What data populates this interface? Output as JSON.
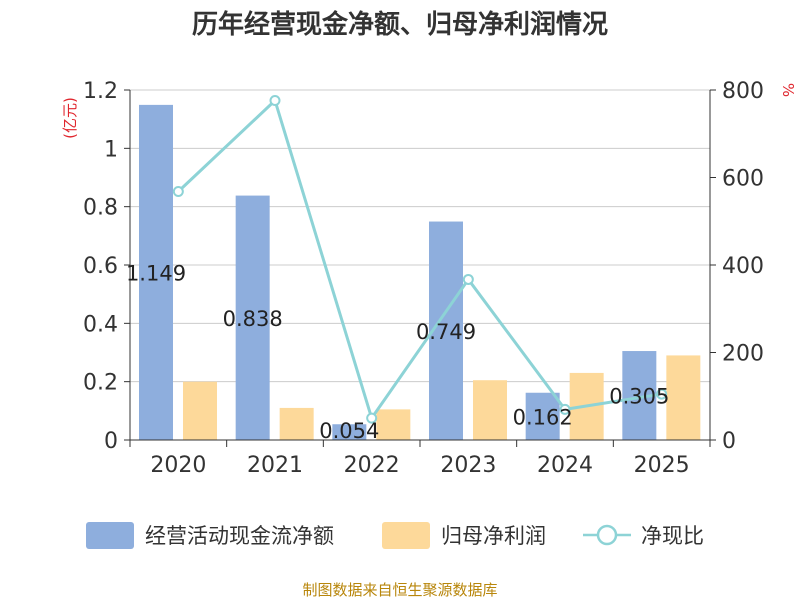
{
  "chart_data": {
    "type": "bar",
    "title": "历年经营现金净额、归母净利润情况",
    "categories": [
      "2020",
      "2021",
      "2022",
      "2023",
      "2024",
      "2025"
    ],
    "left_unit": "(亿元)",
    "right_unit": "%",
    "ylim_left": [
      0,
      1.2
    ],
    "ylim_right": [
      0,
      800
    ],
    "left_ticks": [
      "0",
      "0.2",
      "0.4",
      "0.6",
      "0.8",
      "1",
      "1.2"
    ],
    "right_ticks": [
      "0",
      "200",
      "400",
      "600",
      "800"
    ],
    "series": [
      {
        "name": "经营活动现金流净额",
        "kind": "bar",
        "axis": "left",
        "color": "#8eaedd",
        "values": [
          1.149,
          0.838,
          0.054,
          0.749,
          0.162,
          0.305
        ],
        "labels": [
          "1.149",
          "0.838",
          "0.054",
          "0.749",
          "0.162",
          "0.305"
        ]
      },
      {
        "name": "归母净利润",
        "kind": "bar",
        "axis": "left",
        "color": "#fdd99a",
        "values": [
          0.2,
          0.11,
          0.105,
          0.205,
          0.23,
          0.29
        ]
      },
      {
        "name": "净现比",
        "kind": "line",
        "axis": "right",
        "color": "#8dd3d6",
        "values": [
          568,
          776,
          50,
          367,
          70,
          105
        ]
      }
    ],
    "grid": true,
    "legend_position": "bottom"
  },
  "source": "制图数据来自恒生聚源数据库"
}
